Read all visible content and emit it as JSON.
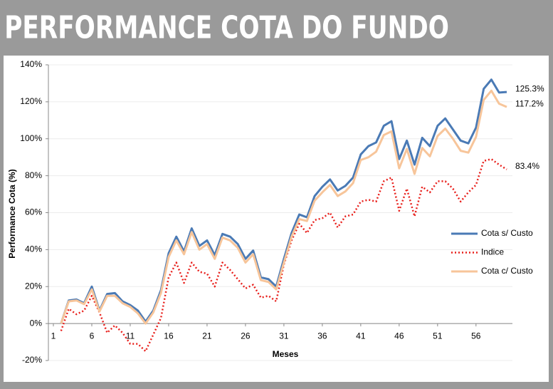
{
  "chart_data": {
    "type": "line",
    "title": "PERFORMANCE COTA DO FUNDO",
    "xlabel": "Meses",
    "ylabel": "Performance Cota (%)",
    "x": [
      2,
      3,
      4,
      5,
      6,
      7,
      8,
      9,
      10,
      11,
      12,
      13,
      14,
      15,
      16,
      17,
      18,
      19,
      20,
      21,
      22,
      23,
      24,
      25,
      26,
      27,
      28,
      29,
      30,
      31,
      32,
      33,
      34,
      35,
      36,
      37,
      38,
      39,
      40,
      41,
      42,
      43,
      44,
      45,
      46,
      47,
      48,
      49,
      50,
      51,
      52,
      53,
      54,
      55,
      56,
      57,
      58,
      59,
      60
    ],
    "xlim": [
      1,
      60
    ],
    "xticks": [
      1,
      6,
      11,
      16,
      21,
      26,
      31,
      36,
      41,
      46,
      51,
      56
    ],
    "ylim": [
      -20,
      140
    ],
    "yticks": [
      {
        "value": -20,
        "label": "-20%"
      },
      {
        "value": 0,
        "label": "0%"
      },
      {
        "value": 20,
        "label": "20%"
      },
      {
        "value": 40,
        "label": "40%"
      },
      {
        "value": 60,
        "label": "60%"
      },
      {
        "value": 80,
        "label": "80%"
      },
      {
        "value": 100,
        "label": "100%"
      },
      {
        "value": 120,
        "label": "120%"
      },
      {
        "value": 140,
        "label": "140%"
      }
    ],
    "grid": true,
    "legend": "right",
    "series": [
      {
        "name": "Cota s/ Custo",
        "color": "#4a7ab5",
        "dash": "solid",
        "last_label": "125.3%",
        "values": [
          0,
          12.5,
          13,
          11,
          20,
          7,
          16,
          16.5,
          12,
          10,
          7,
          1,
          7,
          18,
          38,
          47,
          39,
          51.5,
          42,
          45,
          37,
          48.5,
          47,
          43,
          35,
          39.5,
          25,
          24,
          20,
          35,
          49,
          59,
          57.5,
          69,
          74,
          78,
          72,
          74.5,
          79,
          91.5,
          96,
          98,
          107,
          109.5,
          89,
          99,
          86,
          100.5,
          96,
          107,
          111,
          105,
          99,
          97.5,
          106,
          127,
          132,
          125,
          125.3
        ]
      },
      {
        "name": "Indice",
        "color": "#e8201c",
        "dash": "dotted",
        "last_label": "83.4%",
        "values": [
          -4,
          8,
          5,
          7,
          15,
          6,
          -5,
          -1,
          -5,
          -11,
          -11,
          -15,
          -6,
          3,
          25,
          33,
          22,
          33,
          28,
          27,
          20,
          33,
          29,
          24,
          19,
          21,
          14,
          15,
          12,
          32,
          45,
          54,
          49,
          56,
          57,
          60,
          52,
          58,
          59,
          66,
          67,
          66,
          77,
          79,
          61,
          73,
          58,
          74,
          71,
          77,
          77,
          73,
          66,
          71,
          75,
          88,
          89,
          86,
          83.4
        ]
      },
      {
        "name": "Cota c/ Custo",
        "color": "#f7c59a",
        "dash": "solid",
        "last_label": "117.2%",
        "values": [
          0,
          12,
          12.5,
          10.5,
          18.5,
          6.5,
          15,
          15,
          11,
          9,
          5.5,
          0,
          6,
          16.5,
          36,
          45,
          37.5,
          49.5,
          40,
          43,
          35,
          46.5,
          45,
          41,
          33,
          37.5,
          23.5,
          22.5,
          18.5,
          33,
          47,
          56.5,
          55.5,
          66.5,
          71,
          75,
          69,
          71.5,
          76,
          88.5,
          90,
          93,
          102,
          104,
          84,
          94.5,
          81,
          95,
          90.5,
          101.5,
          105.5,
          100,
          93.5,
          92.5,
          101,
          121,
          126,
          119,
          117.2
        ]
      }
    ]
  }
}
